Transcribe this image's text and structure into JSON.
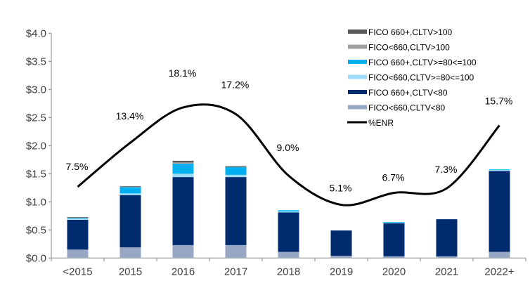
{
  "chart_data": {
    "type": "bar",
    "stacked": true,
    "categories": [
      "<2015",
      "2015",
      "2016",
      "2017",
      "2018",
      "2019",
      "2020",
      "2021",
      "2022+"
    ],
    "ylim": [
      0,
      4.0
    ],
    "y_ticks": [
      "$0.0",
      "$0.5",
      "$1.0",
      "$1.5",
      "$2.0",
      "$2.5",
      "$3.0",
      "$3.5",
      "$4.0"
    ],
    "grid": false,
    "legend_position": "top-right",
    "series": [
      {
        "name": "FICO<660,CLTV<80",
        "color": "#97A7C4",
        "values": [
          0.15,
          0.19,
          0.23,
          0.23,
          0.11,
          0.04,
          0.03,
          0.03,
          0.11
        ]
      },
      {
        "name": "FICO 660+,CLTV<80",
        "color": "#002B6F",
        "values": [
          0.53,
          0.93,
          1.21,
          1.21,
          0.7,
          0.45,
          0.59,
          0.66,
          1.44
        ]
      },
      {
        "name": "FICO<660,CLTV>=80<=100",
        "color": "#9DDCF9",
        "values": [
          0.02,
          0.03,
          0.06,
          0.04,
          0.02,
          0,
          0.01,
          0,
          0.02
        ]
      },
      {
        "name": "FICO 660+,CLTV>=80<=100",
        "color": "#00B0F0",
        "values": [
          0.01,
          0.11,
          0.18,
          0.14,
          0.02,
          0,
          0.01,
          0,
          0.01
        ]
      },
      {
        "name": "FICO<660,CLTV>100",
        "color": "#A0A0A0",
        "values": [
          0.01,
          0.01,
          0.02,
          0.01,
          0,
          0,
          0,
          0,
          0
        ]
      },
      {
        "name": "FICO 660+,CLTV>100",
        "color": "#595959",
        "values": [
          0.01,
          0.01,
          0.03,
          0.01,
          0,
          0,
          0,
          0,
          0
        ]
      }
    ],
    "line_series": {
      "name": "%ENR",
      "color": "#000000",
      "axis": "secondary-hidden",
      "y2lim": [
        -2,
        28
      ],
      "values": [
        7.5,
        13.4,
        18.1,
        17.2,
        9.0,
        5.1,
        6.7,
        7.3,
        15.7
      ],
      "labels": [
        "7.5%",
        "13.4%",
        "18.1%",
        "17.2%",
        "9.0%",
        "5.1%",
        "6.7%",
        "7.3%",
        "15.7%"
      ]
    },
    "legend_order": [
      "FICO 660+,CLTV>100",
      "FICO<660,CLTV>100",
      "FICO 660+,CLTV>=80<=100",
      "FICO<660,CLTV>=80<=100",
      "FICO 660+,CLTV<80",
      "FICO<660,CLTV<80",
      "%ENR"
    ]
  }
}
